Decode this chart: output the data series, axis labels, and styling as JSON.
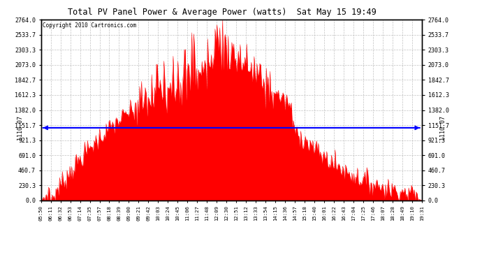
{
  "title": "Total PV Panel Power & Average Power (watts)  Sat May 15 19:49",
  "copyright": "Copyright 2010 Cartronics.com",
  "average_power": 1110.07,
  "y_max": 2764.0,
  "y_ticks": [
    0.0,
    230.3,
    460.7,
    691.0,
    921.3,
    1151.7,
    1382.0,
    1612.3,
    1842.7,
    2073.0,
    2303.3,
    2533.7,
    2764.0
  ],
  "fill_color": "#FF0000",
  "line_color": "#0000FF",
  "background_color": "#FFFFFF",
  "grid_color": "#BBBBBB",
  "x_labels": [
    "05:50",
    "06:11",
    "06:32",
    "06:53",
    "07:14",
    "07:35",
    "07:57",
    "08:18",
    "08:39",
    "09:00",
    "09:21",
    "09:42",
    "10:03",
    "10:24",
    "10:45",
    "11:06",
    "11:27",
    "11:48",
    "12:09",
    "12:30",
    "12:51",
    "13:12",
    "13:33",
    "13:54",
    "14:15",
    "14:36",
    "14:57",
    "15:18",
    "15:40",
    "16:01",
    "16:22",
    "16:43",
    "17:04",
    "17:25",
    "17:46",
    "18:07",
    "18:28",
    "18:49",
    "19:10",
    "19:31"
  ]
}
